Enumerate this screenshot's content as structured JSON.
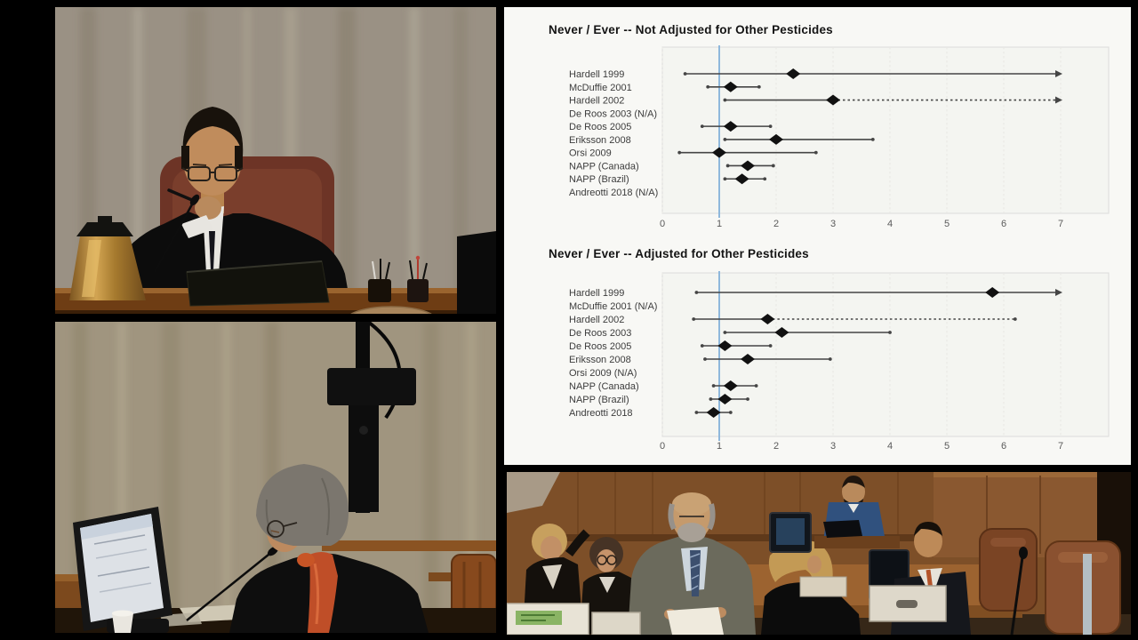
{
  "exhibit": {
    "background_color": "#f8f8f5",
    "charts_count": 2
  },
  "chart_data": [
    {
      "type": "scatter",
      "variant": "forest-plot",
      "title": "Never / Ever -- Not Adjusted for Other Pesticides",
      "xlabel": "",
      "ylabel": "",
      "xlim": [
        0,
        7.8
      ],
      "x_ticks": [
        "0",
        "1",
        "2",
        "3",
        "4",
        "5",
        "6",
        "7"
      ],
      "grid": true,
      "legend": "none",
      "reference_line_x": 1,
      "reference_line_color": "#8fb8dc",
      "marker_color": "#111111",
      "ci_color": "#454545",
      "studies": [
        {
          "label": "Hardell 1999",
          "or": 2.3,
          "ci_low": 0.4,
          "ci_high": 7,
          "clipped_right": true
        },
        {
          "label": "McDuffie 2001",
          "or": 1.2,
          "ci_low": 0.8,
          "ci_high": 1.7
        },
        {
          "label": "Hardell 2002",
          "or": 3.0,
          "ci_low": 1.1,
          "ci_high": 7,
          "clipped_right": true,
          "dashed_right": true
        },
        {
          "label": "De Roos 2003 (N/A)",
          "or": null,
          "ci_low": null,
          "ci_high": null
        },
        {
          "label": "De Roos 2005",
          "or": 1.2,
          "ci_low": 0.7,
          "ci_high": 1.9
        },
        {
          "label": "Eriksson 2008",
          "or": 2.0,
          "ci_low": 1.1,
          "ci_high": 3.7
        },
        {
          "label": "Orsi 2009",
          "or": 1.0,
          "ci_low": 0.3,
          "ci_high": 2.7
        },
        {
          "label": "NAPP (Canada)",
          "or": 1.5,
          "ci_low": 1.15,
          "ci_high": 1.95
        },
        {
          "label": "NAPP (Brazil)",
          "or": 1.4,
          "ci_low": 1.1,
          "ci_high": 1.8
        },
        {
          "label": "Andreotti 2018 (N/A)",
          "or": null,
          "ci_low": null,
          "ci_high": null
        }
      ]
    },
    {
      "type": "scatter",
      "variant": "forest-plot",
      "title": "Never / Ever -- Adjusted for Other Pesticides",
      "xlabel": "",
      "ylabel": "",
      "xlim": [
        0,
        7.8
      ],
      "x_ticks": [
        "0",
        "1",
        "2",
        "3",
        "4",
        "5",
        "6",
        "7"
      ],
      "grid": true,
      "legend": "none",
      "reference_line_x": 1,
      "reference_line_color": "#8fb8dc",
      "marker_color": "#111111",
      "ci_color": "#454545",
      "studies": [
        {
          "label": "Hardell 1999",
          "or": 5.8,
          "ci_low": 0.6,
          "ci_high": 7,
          "clipped_right": true
        },
        {
          "label": "McDuffie 2001 (N/A)",
          "or": null,
          "ci_low": null,
          "ci_high": null
        },
        {
          "label": "Hardell 2002",
          "or": 1.85,
          "ci_low": 0.55,
          "ci_high": 6.2,
          "dashed_right": true
        },
        {
          "label": "De Roos 2003",
          "or": 2.1,
          "ci_low": 1.1,
          "ci_high": 4.0
        },
        {
          "label": "De Roos 2005",
          "or": 1.1,
          "ci_low": 0.7,
          "ci_high": 1.9
        },
        {
          "label": "Eriksson 2008",
          "or": 1.5,
          "ci_low": 0.75,
          "ci_high": 2.95
        },
        {
          "label": "Orsi 2009 (N/A)",
          "or": null,
          "ci_low": null,
          "ci_high": null
        },
        {
          "label": "NAPP (Canada)",
          "or": 1.2,
          "ci_low": 0.9,
          "ci_high": 1.65
        },
        {
          "label": "NAPP (Brazil)",
          "or": 1.1,
          "ci_low": 0.85,
          "ci_high": 1.5
        },
        {
          "label": "Andreotti 2018",
          "or": 0.9,
          "ci_low": 0.6,
          "ci_high": 1.2
        }
      ]
    }
  ]
}
